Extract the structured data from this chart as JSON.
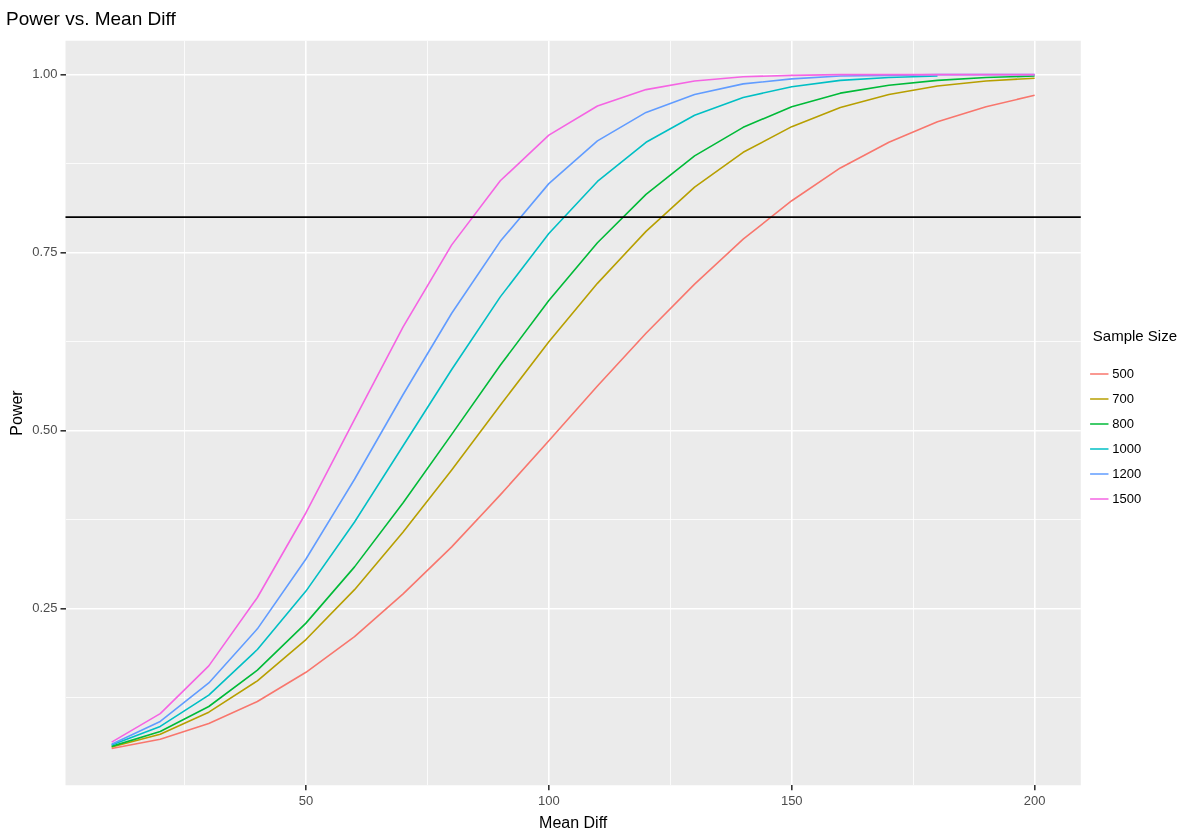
{
  "chart_data": {
    "type": "line",
    "title": "Power vs. Mean Diff",
    "xlabel": "Mean Diff",
    "ylabel": "Power",
    "legend_title": "Sample Size",
    "x": [
      10,
      20,
      30,
      40,
      50,
      60,
      70,
      80,
      90,
      100,
      110,
      120,
      130,
      140,
      150,
      160,
      170,
      180,
      190,
      200
    ],
    "series": [
      {
        "name": "500",
        "color": "#f8766d",
        "values": [
          0.054,
          0.067,
          0.089,
          0.12,
          0.161,
          0.211,
          0.271,
          0.337,
          0.41,
          0.486,
          0.563,
          0.637,
          0.706,
          0.769,
          0.823,
          0.869,
          0.905,
          0.934,
          0.955,
          0.971
        ]
      },
      {
        "name": "700",
        "color": "#b79f00",
        "values": [
          0.056,
          0.074,
          0.105,
          0.149,
          0.207,
          0.277,
          0.358,
          0.445,
          0.536,
          0.625,
          0.707,
          0.78,
          0.842,
          0.891,
          0.927,
          0.954,
          0.972,
          0.984,
          0.991,
          0.995
        ]
      },
      {
        "name": "800",
        "color": "#00ba38",
        "values": [
          0.057,
          0.078,
          0.113,
          0.164,
          0.23,
          0.309,
          0.399,
          0.495,
          0.592,
          0.683,
          0.764,
          0.832,
          0.886,
          0.926,
          0.955,
          0.974,
          0.985,
          0.992,
          0.996,
          0.998
        ]
      },
      {
        "name": "1000",
        "color": "#00bfc4",
        "values": [
          0.059,
          0.085,
          0.129,
          0.193,
          0.275,
          0.372,
          0.479,
          0.586,
          0.688,
          0.777,
          0.85,
          0.905,
          0.943,
          0.968,
          0.983,
          0.992,
          0.996,
          0.998,
          null,
          null
        ]
      },
      {
        "name": "1200",
        "color": "#619cff",
        "values": [
          0.06,
          0.092,
          0.146,
          0.222,
          0.32,
          0.432,
          0.551,
          0.665,
          0.766,
          0.847,
          0.907,
          0.947,
          0.972,
          0.987,
          0.994,
          0.998,
          0.999,
          1.0,
          1.0,
          1.0
        ]
      },
      {
        "name": "1500",
        "color": "#f564e3",
        "values": [
          0.063,
          0.103,
          0.17,
          0.266,
          0.385,
          0.516,
          0.646,
          0.761,
          0.851,
          0.915,
          0.956,
          0.979,
          0.991,
          0.997,
          0.999,
          1.0,
          1.0,
          1.0,
          1.0,
          1.0
        ]
      }
    ],
    "xlim": [
      0.5,
      209.5
    ],
    "xticks": [
      {
        "value": 25,
        "label": null
      },
      50,
      {
        "value": 75,
        "label": null
      },
      100,
      {
        "value": 125,
        "label": null
      },
      150,
      {
        "value": 175,
        "label": null
      },
      200
    ],
    "ylim": [
      0.0025,
      1.0475
    ],
    "yticks": [
      {
        "value": 0.125,
        "label": null
      },
      0.25,
      {
        "value": 0.375,
        "label": null
      },
      {
        "value": 0.5,
        "label": "0.50"
      },
      {
        "value": 0.625,
        "label": null
      },
      0.75,
      {
        "value": 0.875,
        "label": null
      },
      {
        "value": 1,
        "label": "1.00"
      }
    ],
    "ref_lines": [
      {
        "axis": "y",
        "value": 0.8,
        "color": "#000000"
      }
    ],
    "grid": true,
    "legend": "right",
    "marker": "none"
  }
}
